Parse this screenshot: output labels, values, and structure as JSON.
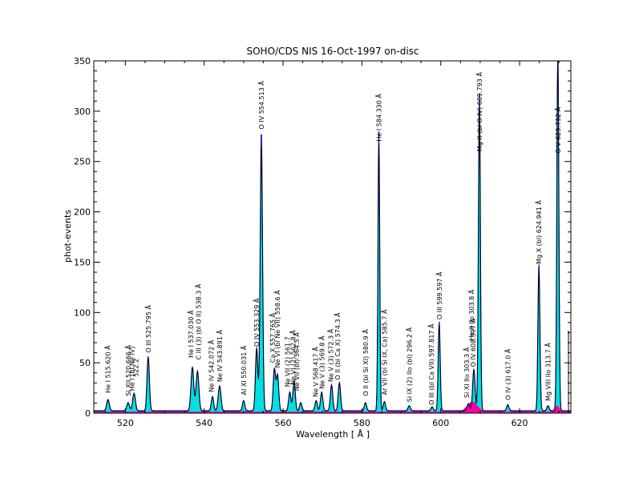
{
  "chart_data": {
    "type": "line",
    "title": "SOHO/CDS NIS  16-Oct-1997 on-disc",
    "xlabel": "Wavelength  [ Å ]",
    "ylabel": "phot-events",
    "xlim": [
      512,
      633
    ],
    "ylim": [
      0,
      350
    ],
    "x_ticks": [
      520,
      540,
      560,
      580,
      600,
      620
    ],
    "y_ticks": [
      0,
      50,
      100,
      150,
      200,
      250,
      300,
      350
    ],
    "colors": {
      "observed": "#000000",
      "model": "#1a1a9a",
      "fill_main": "#00e0e0",
      "fill_second": "#ff00a0"
    },
    "peaks": [
      {
        "x": 515.6,
        "y": 11,
        "w": 0.35
      },
      {
        "x": 520.7,
        "y": 8,
        "w": 0.35
      },
      {
        "x": 522.2,
        "y": 17,
        "w": 0.35
      },
      {
        "x": 525.8,
        "y": 52,
        "w": 0.3
      },
      {
        "x": 537.0,
        "y": 42,
        "w": 0.35
      },
      {
        "x": 538.3,
        "y": 38,
        "w": 0.35
      },
      {
        "x": 542.1,
        "y": 14,
        "w": 0.3
      },
      {
        "x": 543.9,
        "y": 24,
        "w": 0.35
      },
      {
        "x": 550.0,
        "y": 10,
        "w": 0.3
      },
      {
        "x": 553.3,
        "y": 60,
        "w": 0.3
      },
      {
        "x": 554.5,
        "y": 265,
        "w": 0.3
      },
      {
        "x": 557.8,
        "y": 40,
        "w": 0.3
      },
      {
        "x": 558.6,
        "y": 34,
        "w": 0.3
      },
      {
        "x": 561.7,
        "y": 18,
        "w": 0.3
      },
      {
        "x": 562.8,
        "y": 28,
        "w": 0.3
      },
      {
        "x": 564.5,
        "y": 8,
        "w": 0.3
      },
      {
        "x": 568.4,
        "y": 10,
        "w": 0.3
      },
      {
        "x": 569.8,
        "y": 18,
        "w": 0.3
      },
      {
        "x": 572.3,
        "y": 25,
        "w": 0.3
      },
      {
        "x": 574.3,
        "y": 27,
        "w": 0.3
      },
      {
        "x": 580.9,
        "y": 8,
        "w": 0.3
      },
      {
        "x": 584.3,
        "y": 265,
        "w": 0.22
      },
      {
        "x": 585.7,
        "y": 9,
        "w": 0.3
      },
      {
        "x": 592.0,
        "y": 5,
        "w": 0.3
      },
      {
        "x": 597.8,
        "y": 4,
        "w": 0.3
      },
      {
        "x": 599.6,
        "y": 85,
        "w": 0.25
      },
      {
        "x": 607.0,
        "y": 7,
        "w": 0.35
      },
      {
        "x": 608.4,
        "y": 40,
        "w": 0.3
      },
      {
        "x": 609.8,
        "y": 300,
        "w": 0.25
      },
      {
        "x": 617.0,
        "y": 6,
        "w": 0.3
      },
      {
        "x": 624.9,
        "y": 140,
        "w": 0.25
      },
      {
        "x": 627.2,
        "y": 5,
        "w": 0.3
      },
      {
        "x": 629.7,
        "y": 350,
        "w": 0.25
      }
    ],
    "line_labels": [
      {
        "x": 515.6,
        "y": 20,
        "text": "He I  515.620 Å"
      },
      {
        "x": 520.7,
        "y": 17,
        "text": "Si XII  520.666 Å"
      },
      {
        "x": 521.7,
        "y": 22,
        "text": "He I (bl Ne IV)"
      },
      {
        "x": 522.7,
        "y": 36,
        "text": "522.2"
      },
      {
        "x": 525.8,
        "y": 60,
        "text": "O III  525.795 Å"
      },
      {
        "x": 536.6,
        "y": 55,
        "text": "He I  537.030 Å"
      },
      {
        "x": 538.5,
        "y": 53,
        "text": "C III (3) (bl O II)  538.3 Å"
      },
      {
        "x": 541.8,
        "y": 21,
        "text": "Ne IV  542.072 Å"
      },
      {
        "x": 543.9,
        "y": 31,
        "text": "Ne IV  543.891 Å"
      },
      {
        "x": 550.0,
        "y": 18,
        "text": "Al XI  550.031 Å"
      },
      {
        "x": 553.3,
        "y": 66,
        "text": "O IV  553.329 Å"
      },
      {
        "x": 554.5,
        "y": 282,
        "text": "O IV  554.513 Å"
      },
      {
        "x": 557.3,
        "y": 50,
        "text": "Ca X  557.765 Å"
      },
      {
        "x": 558.6,
        "y": 45,
        "text": "Ne VI (bl Ne VII)  558.6 Å"
      },
      {
        "x": 561.1,
        "y": 26,
        "text": "Ne VII (2)  561.7"
      },
      {
        "x": 562.5,
        "y": 28,
        "text": "Ne VI (2)  562.8 Å"
      },
      {
        "x": 563.4,
        "y": 22,
        "text": "Ne VII (bl)  564.5 Å"
      },
      {
        "x": 568.2,
        "y": 16,
        "text": "Ne V  568.417 Å"
      },
      {
        "x": 569.9,
        "y": 24,
        "text": "Ne V (3)  569.8 Å"
      },
      {
        "x": 572.1,
        "y": 31,
        "text": "Ne V (3)  572.3 Å"
      },
      {
        "x": 573.8,
        "y": 33,
        "text": "O II (bl Ca X)  574.3 Å"
      },
      {
        "x": 580.9,
        "y": 17,
        "text": "O II (bl Si XI)  580.9 Å"
      },
      {
        "x": 584.3,
        "y": 270,
        "text": "He I  584.330 Å"
      },
      {
        "x": 585.7,
        "y": 18,
        "text": "Ar VII (bl Si IX, Ca)  585.7 Å"
      },
      {
        "x": 592.0,
        "y": 11,
        "text": "Si IX (2) IIo (bl)  296.2 Å"
      },
      {
        "x": 597.6,
        "y": 8,
        "text": "O III (bl Ca VII)  597.817 Å"
      },
      {
        "x": 599.6,
        "y": 93,
        "text": "O III  599.597 Å"
      },
      {
        "x": 606.6,
        "y": 15,
        "text": "Si XI IIo  303.3 Å"
      },
      {
        "x": 608.2,
        "y": 46,
        "text": "O IV  608.397 Å"
      },
      {
        "x": 607.8,
        "y": 72,
        "text": "He II IIo  303.8 Å"
      },
      {
        "x": 609.8,
        "y": 260,
        "text": "Mg X (bl O IV)  609.793 Å"
      },
      {
        "x": 617.0,
        "y": 13,
        "text": "O IV (3)  617.0 Å"
      },
      {
        "x": 624.9,
        "y": 148,
        "text": "Mg X (bl)  624.941 Å"
      },
      {
        "x": 627.2,
        "y": 12,
        "text": "Mg VIII IIo  313.7 Å"
      },
      {
        "x": 629.7,
        "y": 258,
        "text": "O V  629.732 Å"
      }
    ]
  }
}
